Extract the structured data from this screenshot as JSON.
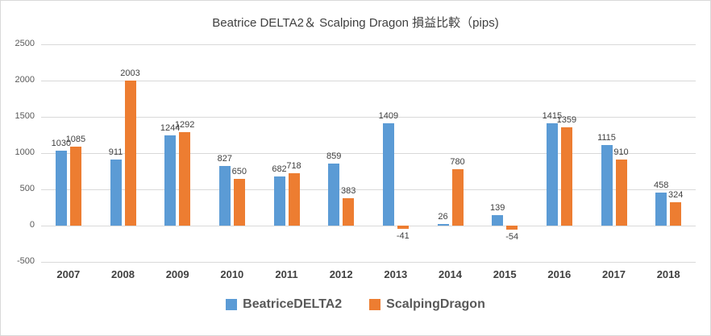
{
  "chart_data": {
    "type": "bar",
    "title": "Beatrice DELTA2＆ Scalping Dragon 損益比較（pips)",
    "categories": [
      "2007",
      "2008",
      "2009",
      "2010",
      "2011",
      "2012",
      "2013",
      "2014",
      "2015",
      "2016",
      "2017",
      "2018"
    ],
    "series": [
      {
        "name": "BeatriceDELTA2",
        "color": "#5B9BD5",
        "values": [
          1030,
          911,
          1244,
          827,
          682,
          859,
          1409,
          26,
          139,
          1415,
          1115,
          458
        ]
      },
      {
        "name": "ScalpingDragon",
        "color": "#ED7D31",
        "values": [
          1085,
          2003,
          1292,
          650,
          718,
          383,
          -41,
          780,
          -54,
          1359,
          910,
          324
        ]
      }
    ],
    "xlabel": "",
    "ylabel": "",
    "ylim": [
      -500,
      2500
    ],
    "ytick_step": 500,
    "grid": true,
    "legend_position": "bottom"
  }
}
